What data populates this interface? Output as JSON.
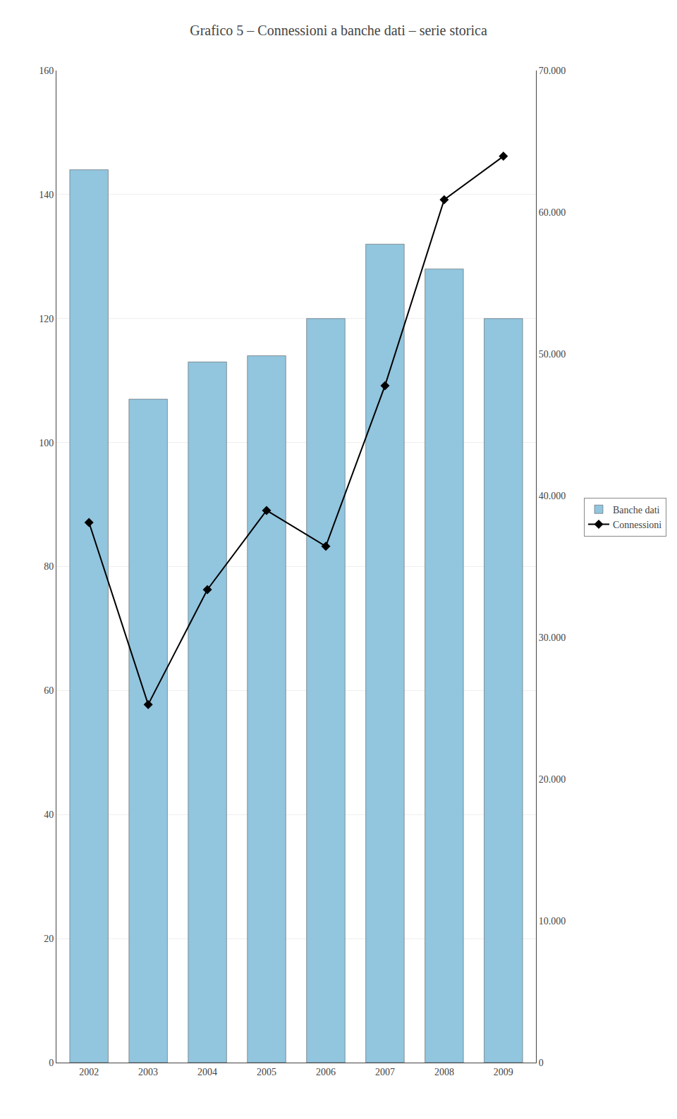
{
  "chart_data": {
    "type": "bar",
    "title": "Grafico 5 – Connessioni a banche dati – serie storica",
    "categories": [
      "2002",
      "2003",
      "2004",
      "2005",
      "2006",
      "2007",
      "2008",
      "2009"
    ],
    "series": [
      {
        "name": "Banche dati",
        "type": "bar",
        "color": "#92C5DE",
        "values": [
          144,
          107,
          113,
          114,
          120,
          132,
          128,
          120
        ]
      },
      {
        "name": "Connessioni",
        "type": "line",
        "axis": "y2",
        "color": "#000000",
        "marker": "diamond",
        "line_style": "solid",
        "values": [
          38113,
          25266,
          33370,
          38959,
          36431,
          47766,
          60884,
          63951
        ]
      }
    ],
    "ylim": [
      0,
      160
    ],
    "yticks": [
      0,
      20,
      40,
      60,
      80,
      100,
      120,
      140,
      160
    ],
    "y2lim": [
      0,
      70000
    ],
    "y2ticks": [
      0,
      {
        "value": 10000,
        "label": "10.000"
      },
      {
        "value": 20000,
        "label": "20.000"
      },
      {
        "value": 30000,
        "label": "30.000"
      },
      {
        "value": 40000,
        "label": "40.000"
      },
      {
        "value": 50000,
        "label": "50.000"
      },
      {
        "value": 60000,
        "label": "60.000"
      },
      {
        "value": 70000,
        "label": "70.000"
      }
    ],
    "grid": true,
    "legend": "right"
  }
}
